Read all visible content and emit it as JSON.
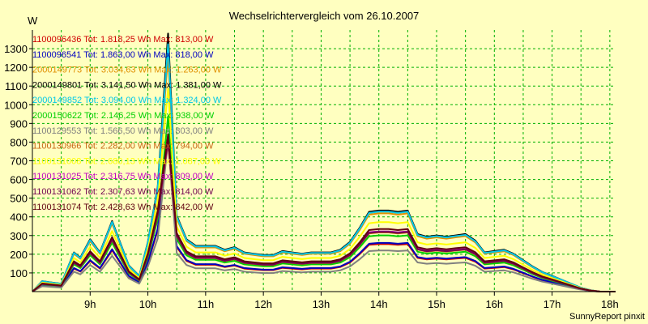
{
  "chart_data": {
    "type": "line",
    "title": "Wechselrichtervergleich vom 26.10.2007",
    "ylabel": "W",
    "xlabel": "",
    "footer": "SunnyReport pinxit",
    "ylim": [
      0,
      1400
    ],
    "xlim": [
      8.0,
      18.1
    ],
    "y_ticks": [
      100,
      200,
      300,
      400,
      500,
      600,
      700,
      800,
      900,
      1000,
      1100,
      1200,
      1300
    ],
    "x_ticks": [
      {
        "value": 9,
        "label": "9h"
      },
      {
        "value": 10,
        "label": "10h"
      },
      {
        "value": 11,
        "label": "11h"
      },
      {
        "value": 12,
        "label": "12h"
      },
      {
        "value": 13,
        "label": "13h"
      },
      {
        "value": 14,
        "label": "14h"
      },
      {
        "value": 15,
        "label": "15h"
      },
      {
        "value": 16,
        "label": "16h"
      },
      {
        "value": 17,
        "label": "17h"
      },
      {
        "value": 18,
        "label": "18h"
      }
    ],
    "grid": true,
    "x": [
      8.0,
      8.17,
      8.33,
      8.5,
      8.72,
      8.83,
      9.0,
      9.17,
      9.38,
      9.67,
      9.85,
      10.0,
      10.17,
      10.35,
      10.5,
      10.67,
      10.83,
      11.0,
      11.17,
      11.33,
      11.5,
      11.67,
      11.83,
      12.0,
      12.17,
      12.33,
      12.5,
      12.67,
      12.83,
      13.0,
      13.17,
      13.33,
      13.5,
      13.67,
      13.83,
      14.0,
      14.17,
      14.33,
      14.5,
      14.67,
      14.83,
      15.0,
      15.17,
      15.33,
      15.5,
      15.67,
      15.83,
      16.0,
      16.17,
      16.33,
      16.5,
      16.67,
      16.83,
      17.0,
      17.17,
      17.33,
      17.5,
      17.67,
      17.83,
      18.0,
      18.1
    ],
    "series": [
      {
        "name": "1100096436",
        "legend": "1100096436 Tot: 1.818,25 Wh Max: 813,00 W",
        "color": "#d00000",
        "scale": 0.82,
        "peak": 813
      },
      {
        "name": "1100096541",
        "legend": "1100096541 Tot: 1.863,00 Wh Max: 818,00 W",
        "color": "#0000c0",
        "scale": 0.84,
        "peak": 818
      },
      {
        "name": "2000149773",
        "legend": "2000149773 Tot: 3.034,63 Wh Max: 1.263,00 W",
        "color": "#e09000",
        "scale": 1.35,
        "peak": 1263
      },
      {
        "name": "2000149801",
        "legend": "2000149801 Tot: 3.141,50 Wh Max: 1.381,00 W",
        "color": "#000000",
        "scale": 1.4,
        "peak": 1381
      },
      {
        "name": "2000149852",
        "legend": "2000149852 Tot: 3.094,00 Wh Max: 1.324,00 W",
        "color": "#00c8e8",
        "scale": 1.38,
        "peak": 1324
      },
      {
        "name": "2000150622",
        "legend": "2000150622 Tot: 2.146,25 Wh Max: 938,00 W",
        "color": "#00d000",
        "scale": 0.97,
        "peak": 938
      },
      {
        "name": "1100129553",
        "legend": "1100129553 Tot: 1.566,50 Wh Max: 803,00 W",
        "color": "#808080",
        "scale": 0.71,
        "peak": 803
      },
      {
        "name": "1100130966",
        "legend": "1100130966 Tot: 2.282,00 Wh Max: 794,00 W",
        "color": "#c86414",
        "scale": 1.02,
        "peak": 794
      },
      {
        "name": "1100131008",
        "legend": "1100131008 Tot: 2.680,13 Wh Max: 1.087,00 W",
        "color": "#ffff00",
        "scale": 1.2,
        "peak": 1087
      },
      {
        "name": "1100131025",
        "legend": "1100131025 Tot: 2.316,75 Wh Max: 809,00 W",
        "color": "#c000c0",
        "scale": 1.04,
        "peak": 809
      },
      {
        "name": "1100131062",
        "legend": "1100131062 Tot: 2.307,63 Wh Max: 814,00 W",
        "color": "#700050",
        "scale": 1.03,
        "peak": 814
      },
      {
        "name": "1100131074",
        "legend": "1100131074 Tot: 2.428,63 Wh Max: 842,00 W",
        "color": "#600010",
        "scale": 1.08,
        "peak": 842
      }
    ],
    "base_profile": [
      0,
      40,
      35,
      30,
      150,
      130,
      200,
      150,
      270,
      100,
      60,
      190,
      400,
      830,
      290,
      200,
      175,
      175,
      175,
      160,
      170,
      150,
      145,
      140,
      140,
      155,
      150,
      145,
      150,
      150,
      150,
      160,
      190,
      245,
      305,
      310,
      310,
      305,
      310,
      220,
      210,
      215,
      210,
      215,
      220,
      195,
      150,
      155,
      160,
      145,
      120,
      95,
      75,
      60,
      45,
      30,
      15,
      5,
      0,
      0,
      0
    ]
  }
}
